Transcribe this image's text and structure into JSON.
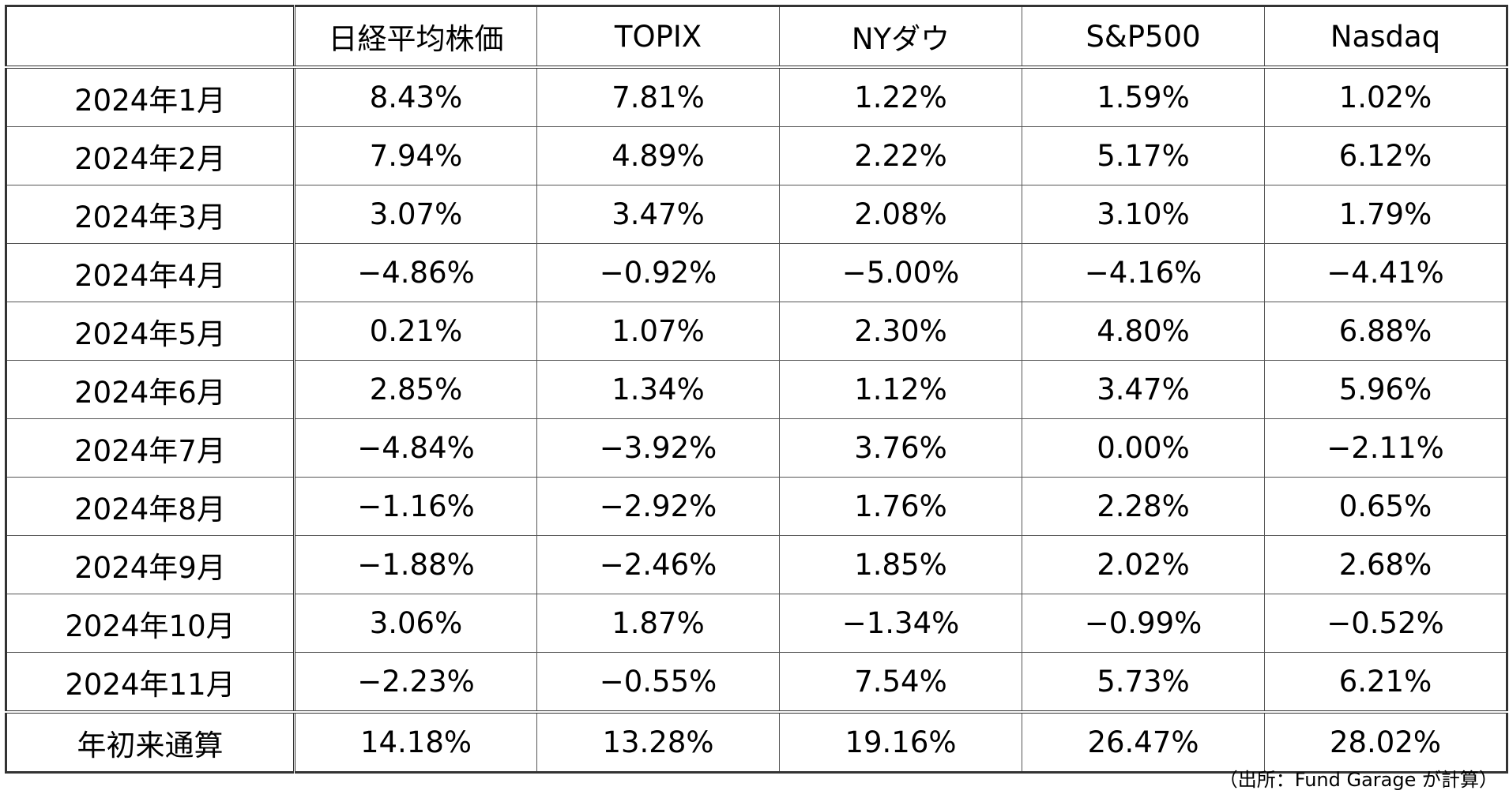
{
  "table": {
    "columns": [
      "日経平均株価",
      "TOPIX",
      "NYダウ",
      "S&P500",
      "Nasdaq"
    ],
    "rows": [
      {
        "label": "2024年1月",
        "values": [
          "8.43%",
          "7.81%",
          "1.22%",
          "1.59%",
          "1.02%"
        ]
      },
      {
        "label": "2024年2月",
        "values": [
          "7.94%",
          "4.89%",
          "2.22%",
          "5.17%",
          "6.12%"
        ]
      },
      {
        "label": "2024年3月",
        "values": [
          "3.07%",
          "3.47%",
          "2.08%",
          "3.10%",
          "1.79%"
        ]
      },
      {
        "label": "2024年4月",
        "values": [
          "−4.86%",
          "−0.92%",
          "−5.00%",
          "−4.16%",
          "−4.41%"
        ]
      },
      {
        "label": "2024年5月",
        "values": [
          "0.21%",
          "1.07%",
          "2.30%",
          "4.80%",
          "6.88%"
        ]
      },
      {
        "label": "2024年6月",
        "values": [
          "2.85%",
          "1.34%",
          "1.12%",
          "3.47%",
          "5.96%"
        ]
      },
      {
        "label": "2024年7月",
        "values": [
          "−4.84%",
          "−3.92%",
          "3.76%",
          "0.00%",
          "−2.11%"
        ]
      },
      {
        "label": "2024年8月",
        "values": [
          "−1.16%",
          "−2.92%",
          "1.76%",
          "2.28%",
          "0.65%"
        ]
      },
      {
        "label": "2024年9月",
        "values": [
          "−1.88%",
          "−2.46%",
          "1.85%",
          "2.02%",
          "2.68%"
        ]
      },
      {
        "label": "2024年10月",
        "values": [
          "3.06%",
          "1.87%",
          "−1.34%",
          "−0.99%",
          "−0.52%"
        ]
      },
      {
        "label": "2024年11月",
        "values": [
          "−2.23%",
          "−0.55%",
          "7.54%",
          "5.73%",
          "6.21%"
        ]
      },
      {
        "label": "年初来通算",
        "values": [
          "14.18%",
          "13.28%",
          "19.16%",
          "26.47%",
          "28.02%"
        ]
      }
    ]
  },
  "note": "（出所：Fund Garage が計算）"
}
